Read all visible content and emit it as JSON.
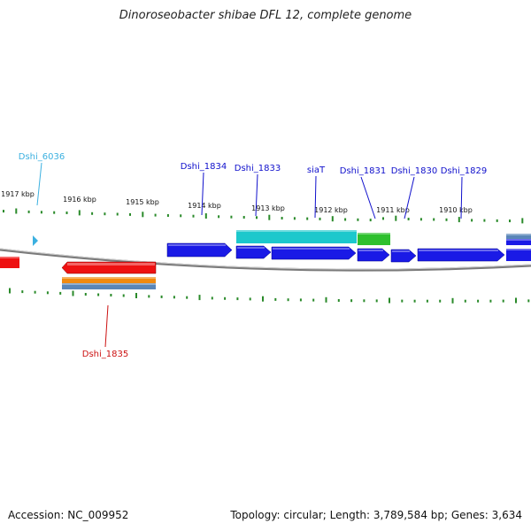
{
  "title": "Dinoroseobacter shibae DFL 12, complete genome",
  "footer": {
    "accession": "Accession: NC_009952",
    "topology": "Topology: circular; Length: 3,789,584 bp; Genes: 3,634"
  },
  "colors": {
    "blue": "#1a1ae6",
    "cyan": "#1cc8cc",
    "green": "#2ec02e",
    "red": "#ee1111",
    "orange": "#f08a10",
    "steel": "#5a86b8",
    "tick": "#2a8a2a",
    "backbone": "#888888"
  },
  "kbp_labels": [
    "1917 kbp",
    "1916 kbp",
    "1915 kbp",
    "1914 kbp",
    "1913 kbp",
    "1912 kbp",
    "1911 kbp",
    "1910 kbp"
  ],
  "gene_labels": [
    {
      "text": "Dshi_6036",
      "color": "#3bb0e0"
    },
    {
      "text": "Dshi_1834",
      "color": "#1010cc"
    },
    {
      "text": "Dshi_1833",
      "color": "#1010cc"
    },
    {
      "text": "siaT",
      "color": "#1010cc"
    },
    {
      "text": "Dshi_1831",
      "color": "#1010cc"
    },
    {
      "text": "Dshi_1830",
      "color": "#1010cc"
    },
    {
      "text": "Dshi_1829",
      "color": "#1010cc"
    },
    {
      "text": "Dshi_1835",
      "color": "#cc1111"
    }
  ]
}
